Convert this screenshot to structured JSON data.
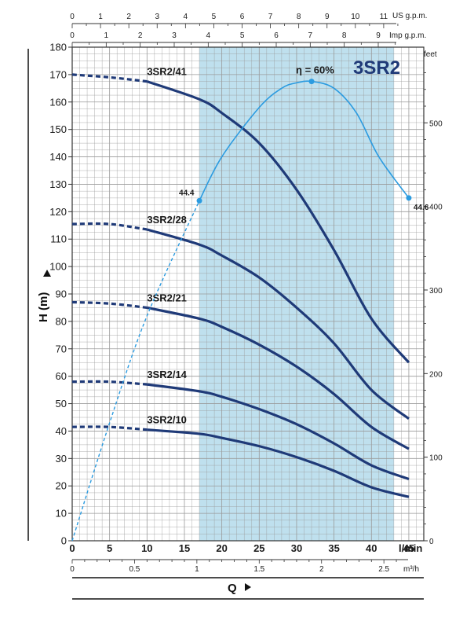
{
  "chart_data": {
    "type": "line",
    "title": "3SR2",
    "colors": {
      "curve": "#1f3a78",
      "efficiency": "#2b9be0",
      "shaded_region": "#bfe0ee",
      "grid": "#9a9a9a",
      "title": "#1f3a78"
    },
    "x_axis": {
      "label": "l/min",
      "range": [
        0,
        47
      ],
      "ticks": [
        0,
        5,
        10,
        15,
        20,
        25,
        30,
        35,
        40,
        45
      ],
      "tick_labels": [
        "0",
        "5",
        "10",
        "15",
        "20",
        "25",
        "30",
        "35",
        "40",
        "45"
      ]
    },
    "x_axis_m3h": {
      "label": "m³/h",
      "ticks": [
        0,
        0.5,
        1,
        1.5,
        2,
        2.5
      ],
      "tick_labels": [
        "0",
        "0.5",
        "1",
        "1.5",
        "2",
        "2.5"
      ]
    },
    "x_axis_us_gpm": {
      "label": "US g.p.m.",
      "ticks": [
        0,
        1,
        2,
        3,
        4,
        5,
        6,
        7,
        8,
        9,
        10,
        11
      ],
      "tick_labels": [
        "0",
        "1",
        "2",
        "3",
        "4",
        "5",
        "6",
        "7",
        "8",
        "9",
        "10",
        "11"
      ]
    },
    "x_axis_imp_gpm": {
      "label": "Imp g.p.m.",
      "ticks": [
        0,
        1,
        2,
        3,
        4,
        5,
        6,
        7,
        8,
        9
      ],
      "tick_labels": [
        "0",
        "1",
        "2",
        "3",
        "4",
        "5",
        "6",
        "7",
        "8",
        "9"
      ]
    },
    "y_axis": {
      "label": "H (m)",
      "range": [
        0,
        180
      ],
      "ticks": [
        0,
        10,
        20,
        30,
        40,
        50,
        60,
        70,
        80,
        90,
        100,
        110,
        120,
        130,
        140,
        150,
        160,
        170,
        180
      ],
      "tick_labels": [
        "0",
        "10",
        "20",
        "30",
        "40",
        "50",
        "60",
        "70",
        "80",
        "90",
        "100",
        "110",
        "120",
        "130",
        "140",
        "150",
        "160",
        "170",
        "180"
      ]
    },
    "y_axis_feet": {
      "label": "feet",
      "ticks": [
        0,
        100,
        200,
        300,
        400,
        500
      ],
      "tick_labels": [
        "0",
        "100",
        "200",
        "300",
        "400",
        "500"
      ]
    },
    "q_label": "Q",
    "shaded_range": [
      17,
      43
    ],
    "series": [
      {
        "name": "3SR2/41",
        "x": [
          0,
          5,
          10,
          17,
          20,
          25,
          30,
          35,
          40,
          45
        ],
        "values": [
          170,
          169,
          167.5,
          161,
          156,
          145,
          128,
          106,
          81,
          65
        ],
        "dashed_until": 10
      },
      {
        "name": "3SR2/28",
        "x": [
          0,
          5,
          10,
          17,
          20,
          25,
          30,
          35,
          40,
          45
        ],
        "values": [
          115.5,
          115.5,
          113.5,
          108,
          104,
          96,
          85,
          72,
          55,
          44.5
        ],
        "dashed_until": 10
      },
      {
        "name": "3SR2/21",
        "x": [
          0,
          5,
          10,
          17,
          20,
          25,
          30,
          35,
          40,
          45
        ],
        "values": [
          87,
          86.5,
          85,
          81,
          78,
          71.5,
          63.5,
          53.5,
          41.5,
          33.5
        ],
        "dashed_until": 10
      },
      {
        "name": "3SR2/14",
        "x": [
          0,
          5,
          10,
          17,
          20,
          25,
          30,
          35,
          40,
          45
        ],
        "values": [
          58,
          58,
          57,
          54.5,
          52.5,
          48,
          42.5,
          35.5,
          27.5,
          22.5
        ],
        "dashed_until": 10
      },
      {
        "name": "3SR2/10",
        "x": [
          0,
          5,
          10,
          17,
          20,
          25,
          30,
          35,
          40,
          45
        ],
        "values": [
          41.5,
          41.5,
          40.5,
          39,
          37.5,
          34.5,
          30.5,
          25.5,
          19.5,
          16
        ],
        "dashed_until": 10
      }
    ],
    "efficiency": {
      "label": "η = 60%",
      "x": [
        0,
        5,
        10,
        17,
        20,
        25,
        28,
        30,
        32,
        35,
        38,
        41,
        45
      ],
      "values": [
        0,
        43,
        82,
        124,
        140,
        158,
        165,
        167,
        167.5,
        165,
        156,
        140,
        125
      ],
      "dashed_until": 17,
      "points": [
        {
          "x": 17,
          "y": 124,
          "label": "44.4"
        },
        {
          "x": 32,
          "y": 167.5,
          "label": ""
        },
        {
          "x": 45,
          "y": 125,
          "label": "44.6"
        }
      ]
    }
  }
}
